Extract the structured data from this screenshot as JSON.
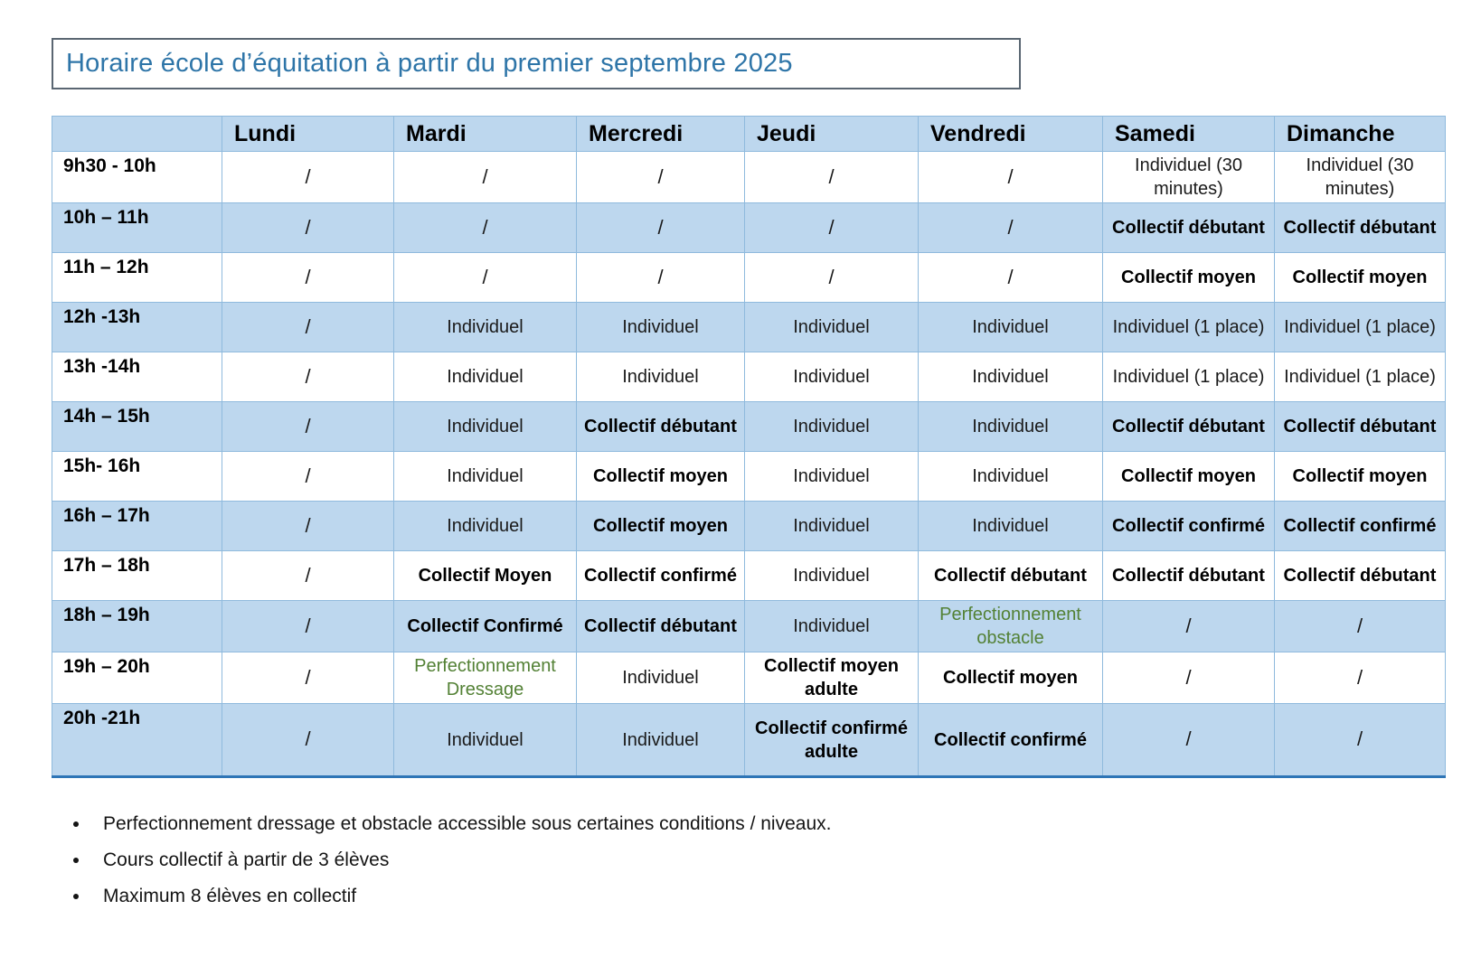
{
  "title": "Horaire école d’équitation à partir du premier septembre 2025",
  "table": {
    "columns": [
      "",
      "Lundi",
      "Mardi",
      "Mercredi",
      "Jeudi",
      "Vendredi",
      "Samedi",
      "Dimanche"
    ],
    "rows": [
      {
        "time": "9h30 - 10h",
        "cells": [
          {
            "text": "/",
            "style": "slash"
          },
          {
            "text": "/",
            "style": "slash"
          },
          {
            "text": "/",
            "style": "slash"
          },
          {
            "text": "/",
            "style": "slash"
          },
          {
            "text": "/",
            "style": "slash"
          },
          {
            "text": "Individuel (30 minutes)",
            "style": "plain"
          },
          {
            "text": "Individuel (30 minutes)",
            "style": "plain"
          }
        ]
      },
      {
        "time": "10h – 11h",
        "cells": [
          {
            "text": "/",
            "style": "slash"
          },
          {
            "text": "/",
            "style": "slash"
          },
          {
            "text": "/",
            "style": "slash"
          },
          {
            "text": "/",
            "style": "slash"
          },
          {
            "text": "/",
            "style": "slash"
          },
          {
            "text": "Collectif débutant",
            "style": "bold"
          },
          {
            "text": "Collectif débutant",
            "style": "bold"
          }
        ]
      },
      {
        "time": "11h – 12h",
        "cells": [
          {
            "text": "/",
            "style": "slash"
          },
          {
            "text": "/",
            "style": "slash"
          },
          {
            "text": "/",
            "style": "slash"
          },
          {
            "text": "/",
            "style": "slash"
          },
          {
            "text": "/",
            "style": "slash"
          },
          {
            "text": "Collectif moyen",
            "style": "bold"
          },
          {
            "text": "Collectif moyen",
            "style": "bold"
          }
        ]
      },
      {
        "time": "12h -13h",
        "cells": [
          {
            "text": "/",
            "style": "slash"
          },
          {
            "text": "Individuel",
            "style": "plain"
          },
          {
            "text": "Individuel",
            "style": "plain"
          },
          {
            "text": "Individuel",
            "style": "plain"
          },
          {
            "text": "Individuel",
            "style": "plain"
          },
          {
            "text": "Individuel (1 place)",
            "style": "plain"
          },
          {
            "text": "Individuel (1 place)",
            "style": "plain"
          }
        ]
      },
      {
        "time": "13h -14h",
        "cells": [
          {
            "text": "/",
            "style": "slash"
          },
          {
            "text": "Individuel",
            "style": "plain"
          },
          {
            "text": "Individuel",
            "style": "plain"
          },
          {
            "text": "Individuel",
            "style": "plain"
          },
          {
            "text": "Individuel",
            "style": "plain"
          },
          {
            "text": "Individuel (1 place)",
            "style": "plain"
          },
          {
            "text": "Individuel (1 place)",
            "style": "plain"
          }
        ]
      },
      {
        "time": "14h – 15h",
        "cells": [
          {
            "text": "/",
            "style": "slash"
          },
          {
            "text": "Individuel",
            "style": "plain"
          },
          {
            "text": "Collectif débutant",
            "style": "bold"
          },
          {
            "text": "Individuel",
            "style": "plain"
          },
          {
            "text": "Individuel",
            "style": "plain"
          },
          {
            "text": "Collectif débutant",
            "style": "bold"
          },
          {
            "text": "Collectif débutant",
            "style": "bold"
          }
        ]
      },
      {
        "time": "15h- 16h",
        "cells": [
          {
            "text": "/",
            "style": "slash"
          },
          {
            "text": "Individuel",
            "style": "plain"
          },
          {
            "text": "Collectif moyen",
            "style": "bold"
          },
          {
            "text": "Individuel",
            "style": "plain"
          },
          {
            "text": "Individuel",
            "style": "plain"
          },
          {
            "text": "Collectif moyen",
            "style": "bold"
          },
          {
            "text": "Collectif moyen",
            "style": "bold"
          }
        ]
      },
      {
        "time": "16h – 17h",
        "cells": [
          {
            "text": "/",
            "style": "slash"
          },
          {
            "text": "Individuel",
            "style": "plain"
          },
          {
            "text": "Collectif moyen",
            "style": "bold"
          },
          {
            "text": "Individuel",
            "style": "plain"
          },
          {
            "text": "Individuel",
            "style": "plain"
          },
          {
            "text": "Collectif confirmé",
            "style": "bold"
          },
          {
            "text": "Collectif confirmé",
            "style": "bold"
          }
        ]
      },
      {
        "time": "17h – 18h",
        "cells": [
          {
            "text": "/",
            "style": "slash"
          },
          {
            "text": "Collectif Moyen",
            "style": "bold"
          },
          {
            "text": "Collectif confirmé",
            "style": "bold"
          },
          {
            "text": "Individuel",
            "style": "plain"
          },
          {
            "text": "Collectif débutant",
            "style": "bold"
          },
          {
            "text": "Collectif débutant",
            "style": "bold"
          },
          {
            "text": "Collectif débutant",
            "style": "bold"
          }
        ]
      },
      {
        "time": "18h – 19h",
        "cells": [
          {
            "text": "/",
            "style": "slash"
          },
          {
            "text": "Collectif Confirmé",
            "style": "bold"
          },
          {
            "text": "Collectif débutant",
            "style": "bold"
          },
          {
            "text": "Individuel",
            "style": "plain"
          },
          {
            "text": "Perfectionnement obstacle",
            "style": "green"
          },
          {
            "text": "/",
            "style": "slash"
          },
          {
            "text": "/",
            "style": "slash"
          }
        ]
      },
      {
        "time": "19h – 20h",
        "cells": [
          {
            "text": "/",
            "style": "slash"
          },
          {
            "text": "Perfectionnement Dressage",
            "style": "green"
          },
          {
            "text": "Individuel",
            "style": "plain"
          },
          {
            "text": "Collectif moyen adulte",
            "style": "bold"
          },
          {
            "text": "Collectif moyen",
            "style": "bold"
          },
          {
            "text": "/",
            "style": "slash"
          },
          {
            "text": "/",
            "style": "slash"
          }
        ]
      },
      {
        "time": "20h -21h",
        "cells": [
          {
            "text": "/",
            "style": "slash"
          },
          {
            "text": "Individuel",
            "style": "plain"
          },
          {
            "text": "Individuel",
            "style": "plain"
          },
          {
            "text": "Collectif confirmé adulte",
            "style": "bold"
          },
          {
            "text": "Collectif confirmé",
            "style": "bold"
          },
          {
            "text": "/",
            "style": "slash"
          },
          {
            "text": "/",
            "style": "slash"
          }
        ]
      }
    ]
  },
  "notes": [
    "Perfectionnement dressage et obstacle accessible sous certaines conditions / niveaux.",
    "Cours collectif à partir de 3 élèves",
    "Maximum 8 élèves en collectif"
  ],
  "colors": {
    "stripe_fill": "#bdd7ee",
    "border_blue": "#8fbadd",
    "outer_bottom_border": "#2e75b6",
    "title_text": "#2e75a8",
    "green_text": "#538135",
    "title_box_border": "#5a6672"
  }
}
